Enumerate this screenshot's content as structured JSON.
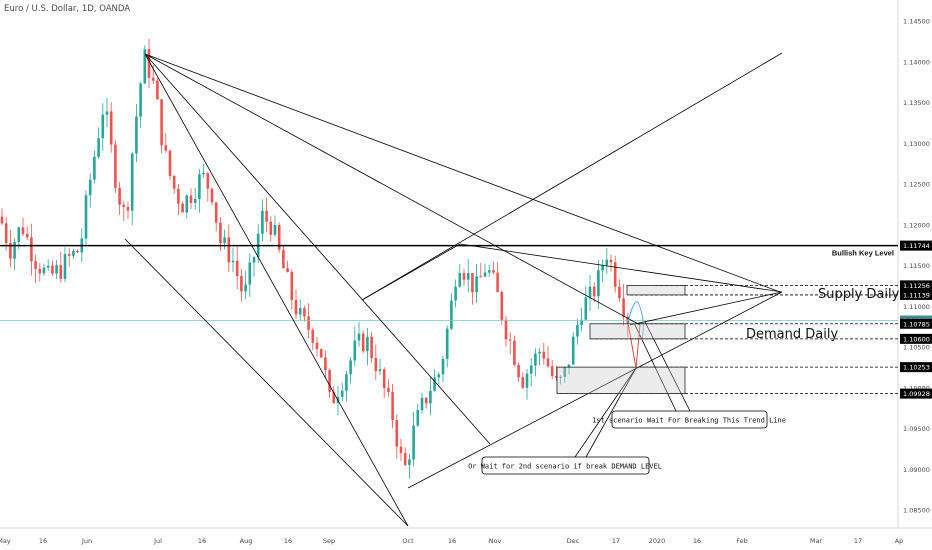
{
  "header": {
    "title": "Euro / U.S. Dollar, 1D, OANDA"
  },
  "chart_data": {
    "type": "candlestick",
    "symbol": "Euro / U.S. Dollar",
    "interval": "1D",
    "source": "OANDA",
    "y_ticks": [
      "1.14500",
      "1.14000",
      "1.13500",
      "1.13000",
      "1.12500",
      "1.12000",
      "1.11500",
      "1.11000",
      "1.10500",
      "1.10000",
      "1.09500",
      "1.09000",
      "1.08500"
    ],
    "x_ticks": [
      "May",
      "16",
      "Jun",
      "Jul",
      "16",
      "Aug",
      "16",
      "Sep",
      "Oct",
      "16",
      "Nov",
      "Dec",
      "17",
      "2020",
      "16",
      "Feb",
      "Mar",
      "17",
      "Ap"
    ],
    "ylim": [
      1.083,
      1.147
    ],
    "price_badges": [
      {
        "label": "1.11744",
        "value": 1.11744,
        "color": "#000000"
      },
      {
        "label": "1.11256",
        "value": 1.11256,
        "color": "#000000"
      },
      {
        "label": "1.11139",
        "value": 1.11139,
        "color": "#000000"
      },
      {
        "label": "1.10825",
        "value": 1.10825,
        "color": "#3d8f8b"
      },
      {
        "label": "1.10785",
        "value": 1.10785,
        "color": "#000000"
      },
      {
        "label": "1.10600",
        "value": 1.106,
        "color": "#000000"
      },
      {
        "label": "1.10253",
        "value": 1.10253,
        "color": "#000000"
      },
      {
        "label": "1.09928",
        "value": 1.09928,
        "color": "#000000"
      }
    ],
    "key_level": {
      "value": 1.11744,
      "label": "Bullish Key Level"
    },
    "zones": [
      {
        "label": "Supply Daily",
        "from": 1.11139,
        "to": 1.11256
      },
      {
        "label": "Demand Daily",
        "from": 1.106,
        "to": 1.10785
      },
      {
        "label": "",
        "from": 1.09928,
        "to": 1.10253
      }
    ],
    "annotations": [
      "1st scenario Wait For Breaking This Trend Line",
      "Or Wait for 2nd scenario if break DEMAND LEVEL"
    ],
    "candle_colors": {
      "up": "#26a69a",
      "down": "#ef5350"
    }
  }
}
